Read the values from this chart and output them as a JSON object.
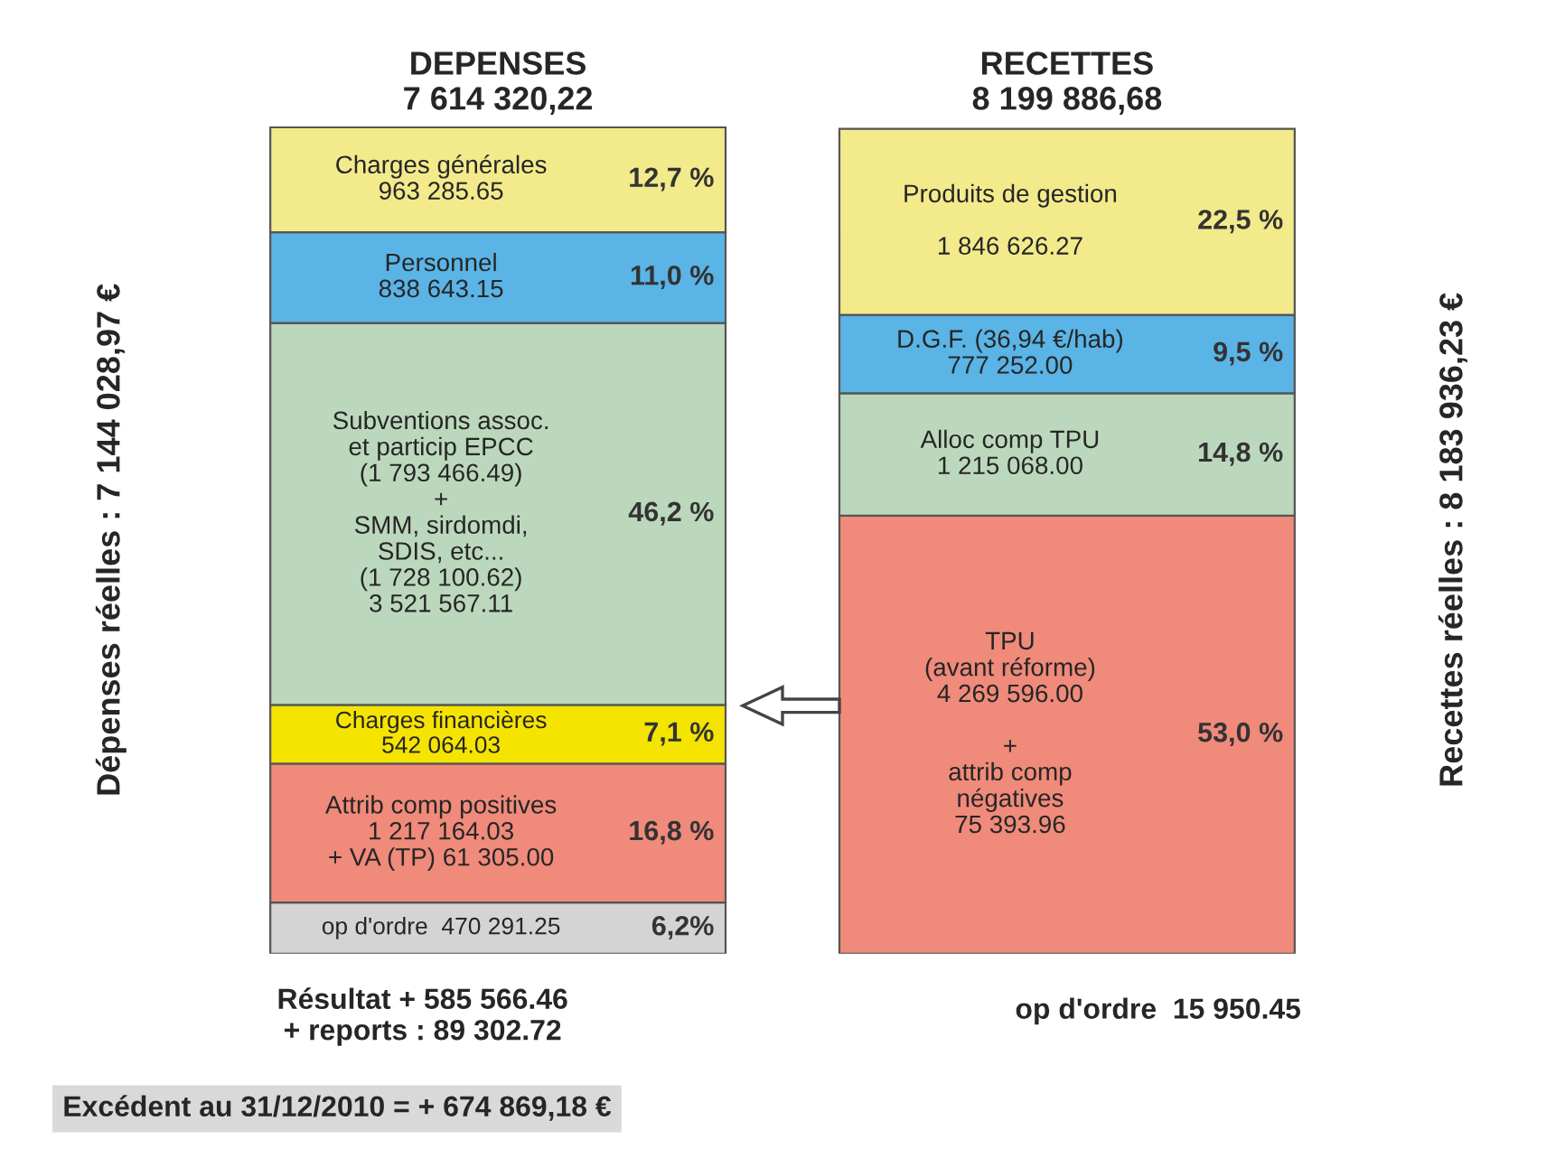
{
  "chart_data": {
    "type": "bar",
    "stacked": true,
    "tick_labels": "x",
    "grid": false,
    "legend": false,
    "categories": [
      "DEPENSES\n7 614 320,22",
      "RECETTES\n8 199 886,68"
    ],
    "ylabel": "Dépenses réelles : 7 144 028,97 €",
    "y2label": "Recettes réelles : 8 183 936,23 €",
    "series": [
      {
        "name": "op d'ordre  470 291.25",
        "color": "#d4d4d4",
        "values": [
          6.2,
          null
        ],
        "value_labels": [
          "6,2%",
          null
        ]
      },
      {
        "name": "Attrib comp positives\n1 217 164.03\n+ VA (TP) 61 305.00",
        "color": "#f08a7a",
        "values": [
          16.8,
          null
        ],
        "value_labels": [
          "16,8 %",
          null
        ]
      },
      {
        "name": "Charges financières\n542 064.03",
        "color": "#f5e400",
        "values": [
          7.1,
          null
        ],
        "value_labels": [
          "7,1 %",
          null
        ]
      },
      {
        "name": "Subventions assoc.\net particip EPCC\n(1 793 466.49)\n+\nSMM, sirdomdi,\nSDIS, etc...\n(1 728 100.62)\n3 521 567.11",
        "color": "#bcd8bc",
        "values": [
          46.2,
          null
        ],
        "value_labels": [
          "46,2 %",
          null
        ]
      },
      {
        "name": "Personnel\n838 643.15",
        "color": "#5ab4e6",
        "values": [
          11.0,
          null
        ],
        "value_labels": [
          "11,0 %",
          null
        ]
      },
      {
        "name": "Charges générales\n963 285.65",
        "color": "#f3ea8c",
        "values": [
          12.7,
          null
        ],
        "value_labels": [
          "12,7 %",
          null
        ]
      },
      {
        "name": "TPU\n(avant réforme)\n4 269 596.00\n\n+\nattrib comp\nnégatives\n75 393.96",
        "color": "#f08a7a",
        "values": [
          null,
          53.0
        ],
        "value_labels": [
          null,
          "53,0 %"
        ]
      },
      {
        "name": "Alloc comp TPU\n1 215 068.00",
        "color": "#bcd8bc",
        "values": [
          null,
          14.8
        ],
        "value_labels": [
          null,
          "14,8 %"
        ]
      },
      {
        "name": "D.G.F. (36,94 €/hab)\n777 252.00",
        "color": "#5ab4e6",
        "values": [
          null,
          9.5
        ],
        "value_labels": [
          null,
          "9,5 %"
        ]
      },
      {
        "name": "Produits de gestion\n\n1 846 626.27",
        "color": "#f3ea8c",
        "values": [
          null,
          22.5
        ],
        "value_labels": [
          null,
          "22,5 %"
        ]
      }
    ],
    "annotations": [
      "Résultat + 585 566.46\n+ reports : 89 302.72",
      "Excédent au 31/12/2010 = + 674 869,18 €",
      "op d'ordre  15 950.45"
    ]
  }
}
